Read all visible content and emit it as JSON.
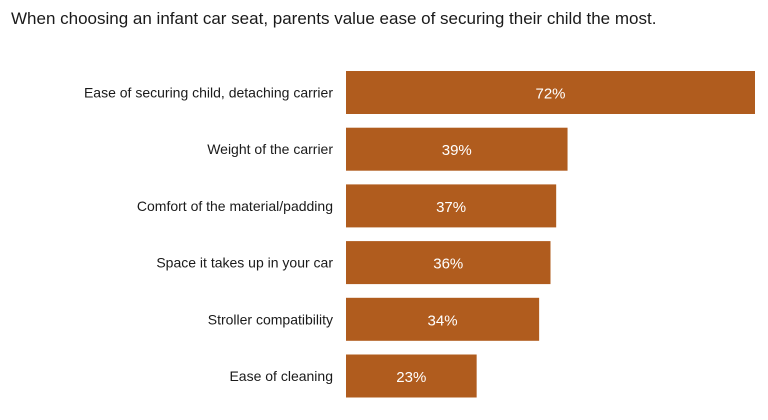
{
  "chart_data": {
    "type": "bar",
    "orientation": "horizontal",
    "title": "When choosing an infant car seat, parents value ease of securing their child the most.",
    "categories": [
      "Ease of securing child, detaching carrier",
      "Weight of the carrier",
      "Comfort of the material/padding",
      "Space it takes up in your car",
      "Stroller compatibility",
      "Ease of cleaning"
    ],
    "values": [
      72,
      39,
      37,
      36,
      34,
      23
    ],
    "value_labels": [
      "72%",
      "39%",
      "37%",
      "36%",
      "34%",
      "23%"
    ],
    "unit": "%",
    "xlim": [
      0,
      72
    ],
    "grid": false,
    "legend": "none",
    "bar_color": "#b05c1e"
  }
}
